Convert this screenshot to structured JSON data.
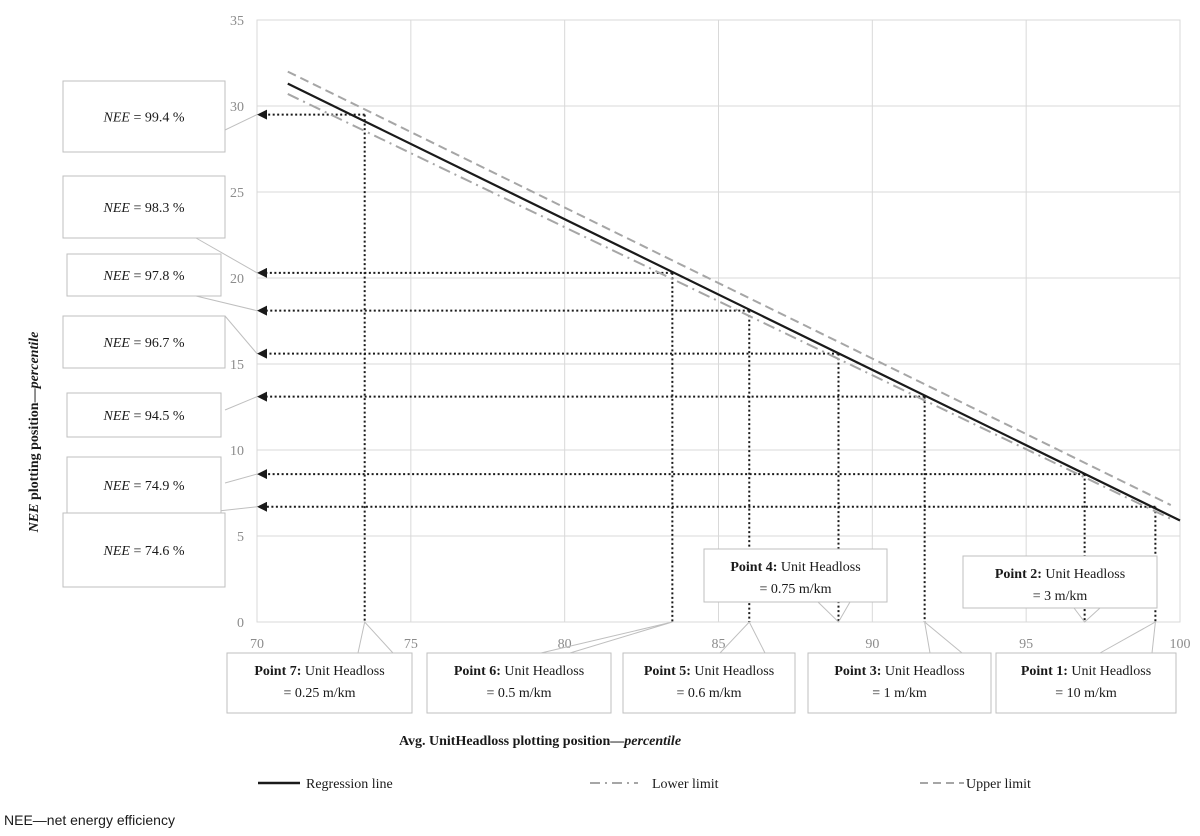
{
  "chart_data": {
    "type": "line",
    "xlabel_main": "Avg. UnitHeadloss plotting position—",
    "xlabel_italic": "percentile",
    "ylabel_italic1": "NEE",
    "ylabel_main": " plotting position—",
    "ylabel_italic2": "percentile",
    "xlim": [
      70,
      100
    ],
    "ylim": [
      0,
      35
    ],
    "xticks": [
      70,
      75,
      80,
      85,
      90,
      95,
      100
    ],
    "yticks": [
      0,
      5,
      10,
      15,
      20,
      25,
      30,
      35
    ],
    "grid": true,
    "legend_position": "bottom",
    "series": [
      {
        "name": "Regression line",
        "style": "solid",
        "color": "#1a1a1a",
        "x": [
          71,
          100
        ],
        "y": [
          31.3,
          5.9
        ]
      },
      {
        "name": "Lower limit",
        "style": "dashdot",
        "color": "#a6a6a6",
        "x": [
          71,
          99.7
        ],
        "y": [
          30.7,
          6.0
        ]
      },
      {
        "name": "Upper limit",
        "style": "dashed",
        "color": "#a6a6a6",
        "x": [
          71,
          99.7
        ],
        "y": [
          32.0,
          6.8
        ]
      }
    ],
    "points": [
      {
        "label": "Point 1:",
        "value": "Unit Headloss",
        "value2": "= 10 m/km",
        "x": 99.2,
        "y": 6.7,
        "nee": "74.6 %"
      },
      {
        "label": "Point 2:",
        "value": "Unit Headloss",
        "value2": "= 3 m/km",
        "x": 96.9,
        "y": 8.6,
        "nee": "74.9 %"
      },
      {
        "label": "Point 3:",
        "value": "Unit Headloss",
        "value2": "= 1 m/km",
        "x": 91.7,
        "y": 13.1,
        "nee": "94.5 %"
      },
      {
        "label": "Point 4:",
        "value": "Unit Headloss",
        "value2": "= 0.75 m/km",
        "x": 88.9,
        "y": 15.6,
        "nee": "96.7 %"
      },
      {
        "label": "Point 5:",
        "value": "Unit Headloss",
        "value2": "= 0.6 m/km",
        "x": 86.0,
        "y": 18.1,
        "nee": "97.8 %"
      },
      {
        "label": "Point 6:",
        "value": "Unit Headloss",
        "value2": "= 0.5 m/km",
        "x": 83.5,
        "y": 20.3,
        "nee": "98.3 %"
      },
      {
        "label": "Point 7:",
        "value": "Unit Headloss",
        "value2": "= 0.25 m/km",
        "x": 73.5,
        "y": 29.5,
        "nee": "99.4 %"
      }
    ],
    "nee_prefix": "NEE",
    "nee_eq": " = "
  },
  "footnote": "NEE—net energy efficiency"
}
